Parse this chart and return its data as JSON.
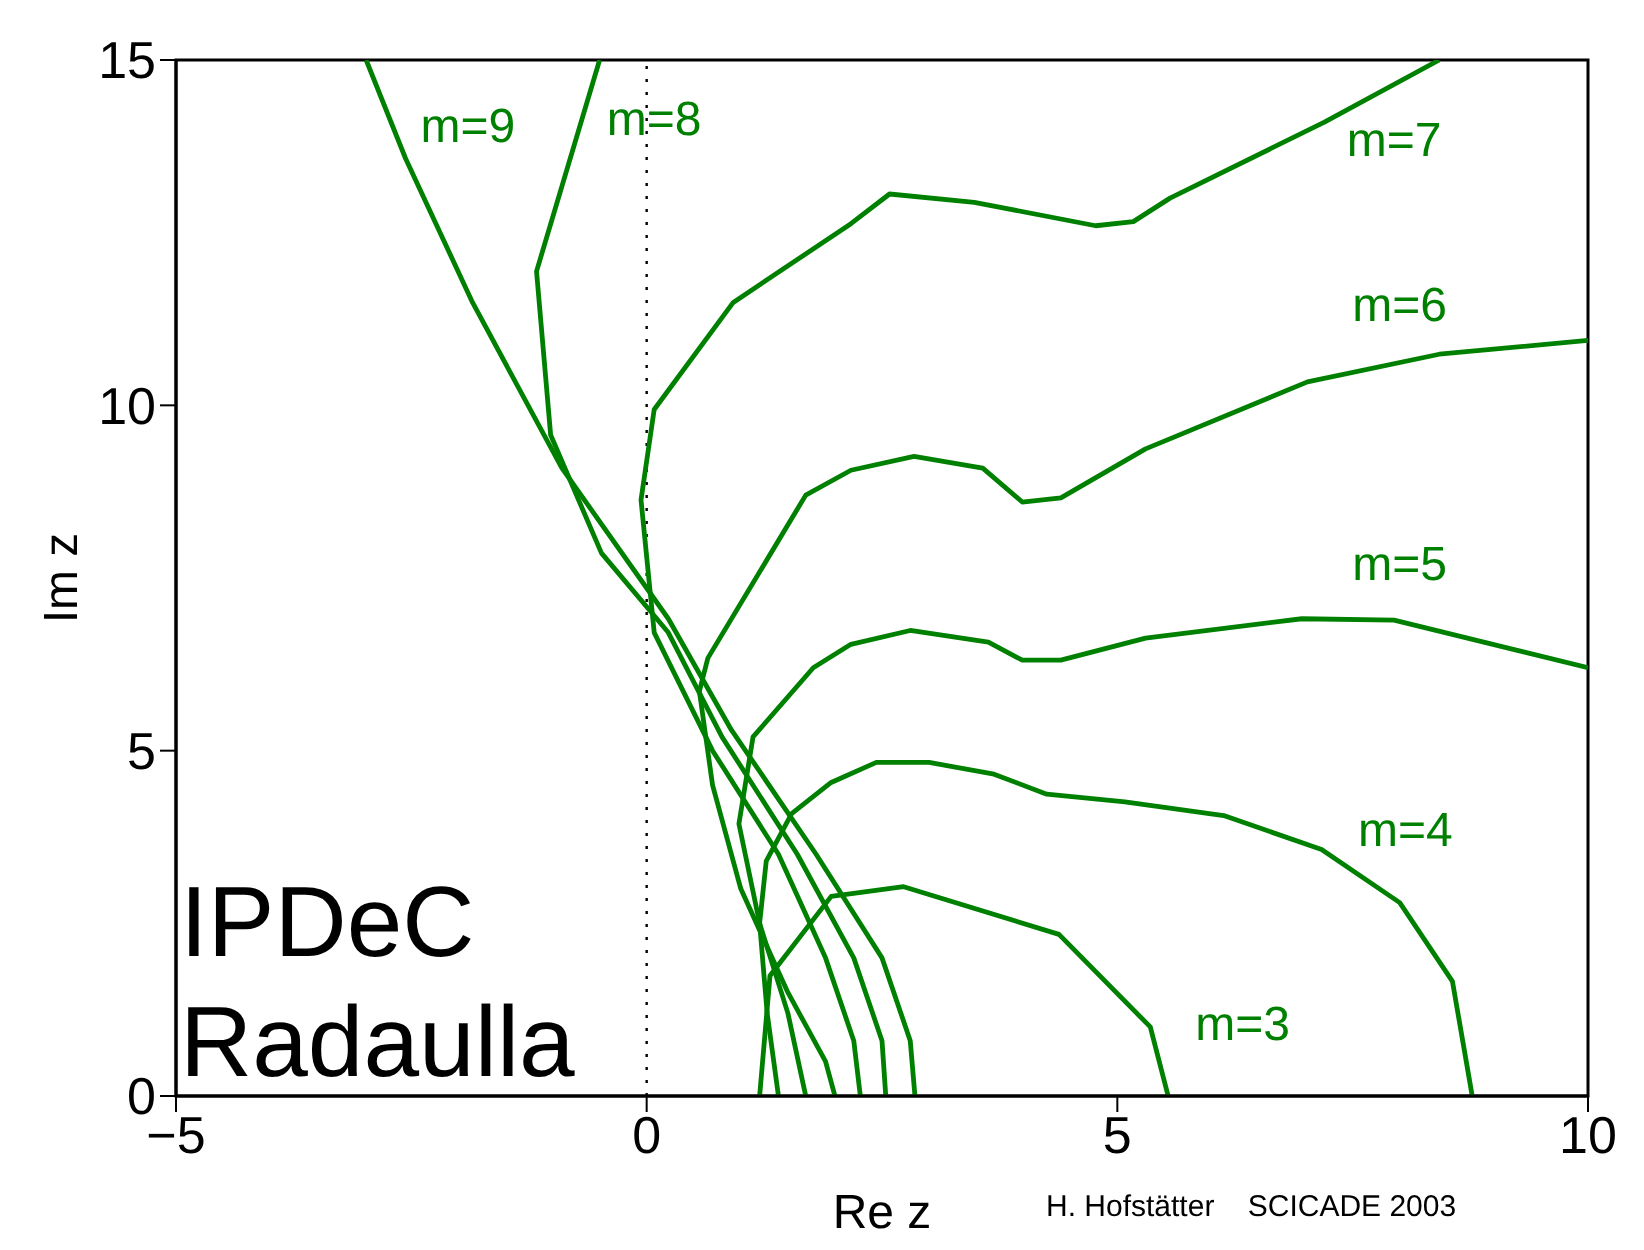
{
  "chart_data": {
    "type": "line",
    "xlabel": "Re z",
    "ylabel": "Im z",
    "xlim": [
      -5,
      10
    ],
    "ylim": [
      0,
      15
    ],
    "xticks": [
      -5,
      0,
      5,
      10
    ],
    "yticks": [
      0,
      5,
      10,
      15
    ],
    "marker": "none",
    "line_style": "solid",
    "series": [
      {
        "name": "m=3",
        "color": "#008000",
        "x": [
          5.54,
          5.35,
          4.38,
          2.73,
          1.96,
          1.31,
          1.2
        ],
        "values": [
          0,
          1.0,
          2.34,
          3.03,
          2.89,
          1.74,
          0
        ]
      },
      {
        "name": "m=4",
        "color": "#008000",
        "x": [
          8.77,
          8.56,
          8.0,
          7.17,
          6.13,
          5.08,
          4.25,
          3.69,
          3.0,
          2.44,
          1.96,
          1.54,
          1.27,
          1.2,
          1.28,
          1.4
        ],
        "values": [
          0,
          1.66,
          2.8,
          3.57,
          4.06,
          4.26,
          4.37,
          4.66,
          4.83,
          4.83,
          4.54,
          4.09,
          3.4,
          2.5,
          1.2,
          0
        ]
      },
      {
        "name": "m=5",
        "color": "#008000",
        "x": [
          10,
          7.94,
          6.96,
          5.3,
          4.4,
          3.99,
          3.63,
          2.8,
          2.17,
          1.77,
          1.13,
          0.98,
          1.2,
          1.5,
          1.69
        ],
        "values": [
          6.2,
          6.89,
          6.91,
          6.63,
          6.31,
          6.31,
          6.57,
          6.74,
          6.54,
          6.2,
          5.2,
          3.94,
          2.5,
          1.2,
          0
        ]
      },
      {
        "name": "m=6",
        "color": "#008000",
        "x": [
          10,
          8.42,
          7.02,
          5.3,
          4.4,
          3.99,
          3.57,
          2.84,
          2.17,
          1.69,
          0.65,
          0.56,
          0.7,
          1.0,
          1.5,
          1.9,
          2.0
        ],
        "values": [
          10.94,
          10.74,
          10.34,
          9.37,
          8.66,
          8.6,
          9.09,
          9.26,
          9.06,
          8.7,
          6.34,
          5.86,
          4.5,
          3.0,
          1.5,
          0.5,
          0
        ]
      },
      {
        "name": "m=7",
        "color": "#008000",
        "x": [
          8.42,
          7.2,
          5.56,
          5.17,
          4.77,
          3.48,
          2.58,
          2.17,
          0.92,
          0.08,
          -0.06,
          0.08,
          0.7,
          1.4,
          1.9,
          2.2,
          2.27
        ],
        "values": [
          15,
          14.1,
          13.0,
          12.66,
          12.6,
          12.94,
          13.06,
          12.63,
          11.49,
          9.94,
          8.63,
          6.71,
          5.0,
          3.5,
          2.0,
          0.8,
          0
        ]
      },
      {
        "name": "m=8",
        "color": "#008000",
        "x": [
          -0.5,
          -1.17,
          -1.02,
          -0.48,
          0.23,
          0.8,
          1.6,
          2.2,
          2.5,
          2.54
        ],
        "values": [
          15,
          11.94,
          9.57,
          7.86,
          6.71,
          5.2,
          3.5,
          2.0,
          0.8,
          0
        ]
      },
      {
        "name": "m=9",
        "color": "#008000",
        "x": [
          -2.98,
          -2.56,
          -1.85,
          -0.9,
          0.23,
          0.9,
          1.8,
          2.5,
          2.8,
          2.85
        ],
        "values": [
          15,
          13.57,
          11.49,
          9.09,
          6.91,
          5.3,
          3.5,
          2.0,
          0.8,
          0
        ]
      }
    ],
    "ref_lines": [
      {
        "axis": "x",
        "value": 0,
        "color": "#000000",
        "line_style": "dotted"
      }
    ],
    "annotations": [
      "IPDeC",
      "Radaulla",
      "H. Hofstätter    SCICADE 2003"
    ]
  }
}
